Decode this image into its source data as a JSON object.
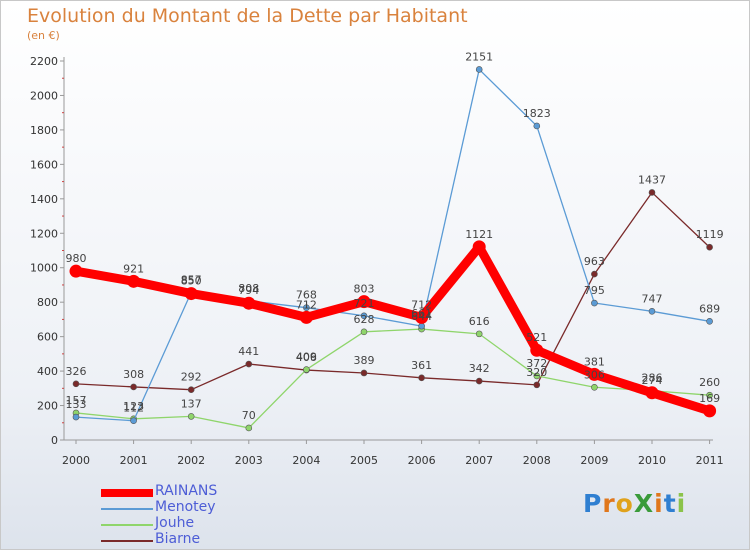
{
  "title": "Evolution du Montant de la Dette par Habitant",
  "subtitle": "(en €)",
  "logo": "ProXiti",
  "chart_data": {
    "type": "line",
    "title": "Evolution du Montant de la Dette par Habitant",
    "ylabel": "(en €)",
    "xlabel": "",
    "categories": [
      "2000",
      "2001",
      "2002",
      "2003",
      "2004",
      "2005",
      "2006",
      "2007",
      "2008",
      "2009",
      "2010",
      "2011"
    ],
    "ylim": [
      0,
      2200
    ],
    "yticks": [
      0,
      200,
      400,
      600,
      800,
      1000,
      1200,
      1400,
      1600,
      1800,
      2000,
      2200
    ],
    "grid": false,
    "legend": "bottom-left",
    "series": [
      {
        "name": "RAINANS",
        "color": "#ff0000",
        "values": [
          980,
          921,
          850,
          794,
          712,
          803,
          712,
          1121,
          521,
          381,
          274,
          169
        ]
      },
      {
        "name": "Menotey",
        "color": "#5b9bd5",
        "values": [
          133,
          112,
          857,
          808,
          768,
          721,
          661,
          2151,
          1823,
          795,
          747,
          689
        ]
      },
      {
        "name": "Jouhe",
        "color": "#8fd56b",
        "values": [
          157,
          123,
          137,
          70,
          409,
          628,
          644,
          616,
          372,
          306,
          286,
          260
        ]
      },
      {
        "name": "Biarne",
        "color": "#7a2a2a",
        "values": [
          326,
          308,
          292,
          441,
          406,
          389,
          361,
          342,
          320,
          963,
          1437,
          1119
        ]
      }
    ]
  }
}
